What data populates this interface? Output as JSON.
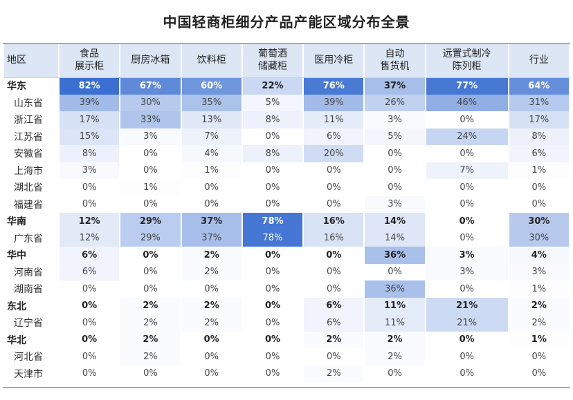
{
  "chart_data": {
    "type": "table",
    "title": "中国轻商柜细分产品产能区域分布全景",
    "header_region": "地区",
    "columns": [
      "食品\n展示柜",
      "厨房冰箱",
      "饮料柜",
      "葡萄酒\n储藏柜",
      "医用冷柜",
      "自动\n售货机",
      "远置式制冷\n陈列柜",
      "行业"
    ],
    "rows": [
      {
        "name": "华东",
        "level": "region",
        "values": [
          82,
          67,
          60,
          22,
          76,
          37,
          77,
          64
        ]
      },
      {
        "name": "山东省",
        "level": "province",
        "values": [
          39,
          30,
          35,
          5,
          39,
          26,
          46,
          31
        ]
      },
      {
        "name": "浙江省",
        "level": "province",
        "values": [
          17,
          33,
          13,
          8,
          11,
          3,
          0,
          17
        ]
      },
      {
        "name": "江苏省",
        "level": "province",
        "values": [
          15,
          3,
          7,
          0,
          6,
          5,
          24,
          8
        ]
      },
      {
        "name": "安徽省",
        "level": "province",
        "values": [
          8,
          0,
          4,
          8,
          20,
          0,
          0,
          6
        ]
      },
      {
        "name": "上海市",
        "level": "province",
        "values": [
          3,
          0,
          1,
          0,
          0,
          0,
          7,
          1
        ]
      },
      {
        "name": "湖北省",
        "level": "province",
        "values": [
          0,
          1,
          0,
          0,
          0,
          0,
          0,
          0
        ]
      },
      {
        "name": "福建省",
        "level": "province",
        "values": [
          0,
          0,
          0,
          0,
          0,
          3,
          0,
          0
        ]
      },
      {
        "name": "华南",
        "level": "region",
        "values": [
          12,
          29,
          37,
          78,
          16,
          14,
          0,
          30
        ]
      },
      {
        "name": "广东省",
        "level": "province",
        "values": [
          12,
          29,
          37,
          78,
          16,
          14,
          0,
          30
        ]
      },
      {
        "name": "华中",
        "level": "region",
        "values": [
          6,
          0,
          2,
          0,
          0,
          36,
          3,
          4
        ]
      },
      {
        "name": "河南省",
        "level": "province",
        "values": [
          6,
          0,
          2,
          0,
          0,
          0,
          3,
          3
        ]
      },
      {
        "name": "湖南省",
        "level": "province",
        "values": [
          0,
          0,
          0,
          0,
          0,
          36,
          0,
          1
        ]
      },
      {
        "name": "东北",
        "level": "region",
        "values": [
          0,
          2,
          2,
          0,
          6,
          11,
          21,
          2
        ]
      },
      {
        "name": "辽宁省",
        "level": "province",
        "values": [
          0,
          2,
          2,
          0,
          6,
          11,
          21,
          2
        ]
      },
      {
        "name": "华北",
        "level": "region",
        "values": [
          0,
          2,
          0,
          0,
          2,
          2,
          0,
          1
        ]
      },
      {
        "name": "河北省",
        "level": "province",
        "values": [
          0,
          2,
          0,
          0,
          0,
          2,
          0,
          0
        ]
      },
      {
        "name": "天津市",
        "level": "province",
        "values": [
          0,
          0,
          0,
          0,
          2,
          0,
          0,
          0
        ]
      }
    ],
    "unit": "%",
    "colors": {
      "header_bg": "#dce6f5",
      "heat_low": "#ffffff",
      "heat_high": "#3b6fd1"
    }
  }
}
